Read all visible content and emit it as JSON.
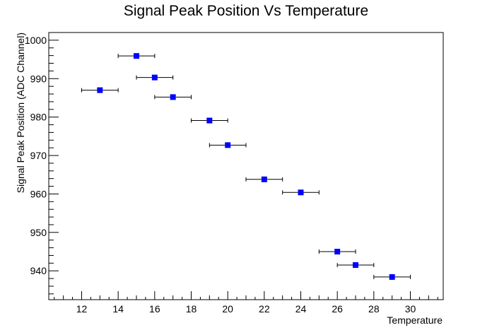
{
  "chart_data": {
    "type": "scatter",
    "title": "Signal Peak Position Vs Temperature",
    "xlabel": "Temperature",
    "ylabel": "Signal Peak Position (ADC Channel)",
    "xlim": [
      10.2,
      31.8
    ],
    "ylim": [
      932.5,
      1002
    ],
    "x_ticks": [
      12,
      14,
      16,
      18,
      20,
      22,
      24,
      26,
      28,
      30
    ],
    "y_ticks": [
      940,
      950,
      960,
      970,
      980,
      990,
      1000
    ],
    "grid": false,
    "marker": "square",
    "colors": {
      "marker": "#0000ff",
      "axis": "#000000",
      "errorbar": "#000000"
    },
    "series": [
      {
        "points": [
          {
            "x": 13,
            "y": 987.0,
            "xerr": 1
          },
          {
            "x": 15,
            "y": 995.9,
            "xerr": 1
          },
          {
            "x": 16,
            "y": 990.3,
            "xerr": 1
          },
          {
            "x": 17,
            "y": 985.2,
            "xerr": 1
          },
          {
            "x": 19,
            "y": 979.1,
            "xerr": 1
          },
          {
            "x": 20,
            "y": 972.7,
            "xerr": 1
          },
          {
            "x": 22,
            "y": 963.8,
            "xerr": 1
          },
          {
            "x": 24,
            "y": 960.4,
            "xerr": 1
          },
          {
            "x": 26,
            "y": 945.0,
            "xerr": 1
          },
          {
            "x": 27,
            "y": 941.5,
            "xerr": 1
          },
          {
            "x": 29,
            "y": 938.4,
            "xerr": 1
          }
        ]
      }
    ]
  }
}
